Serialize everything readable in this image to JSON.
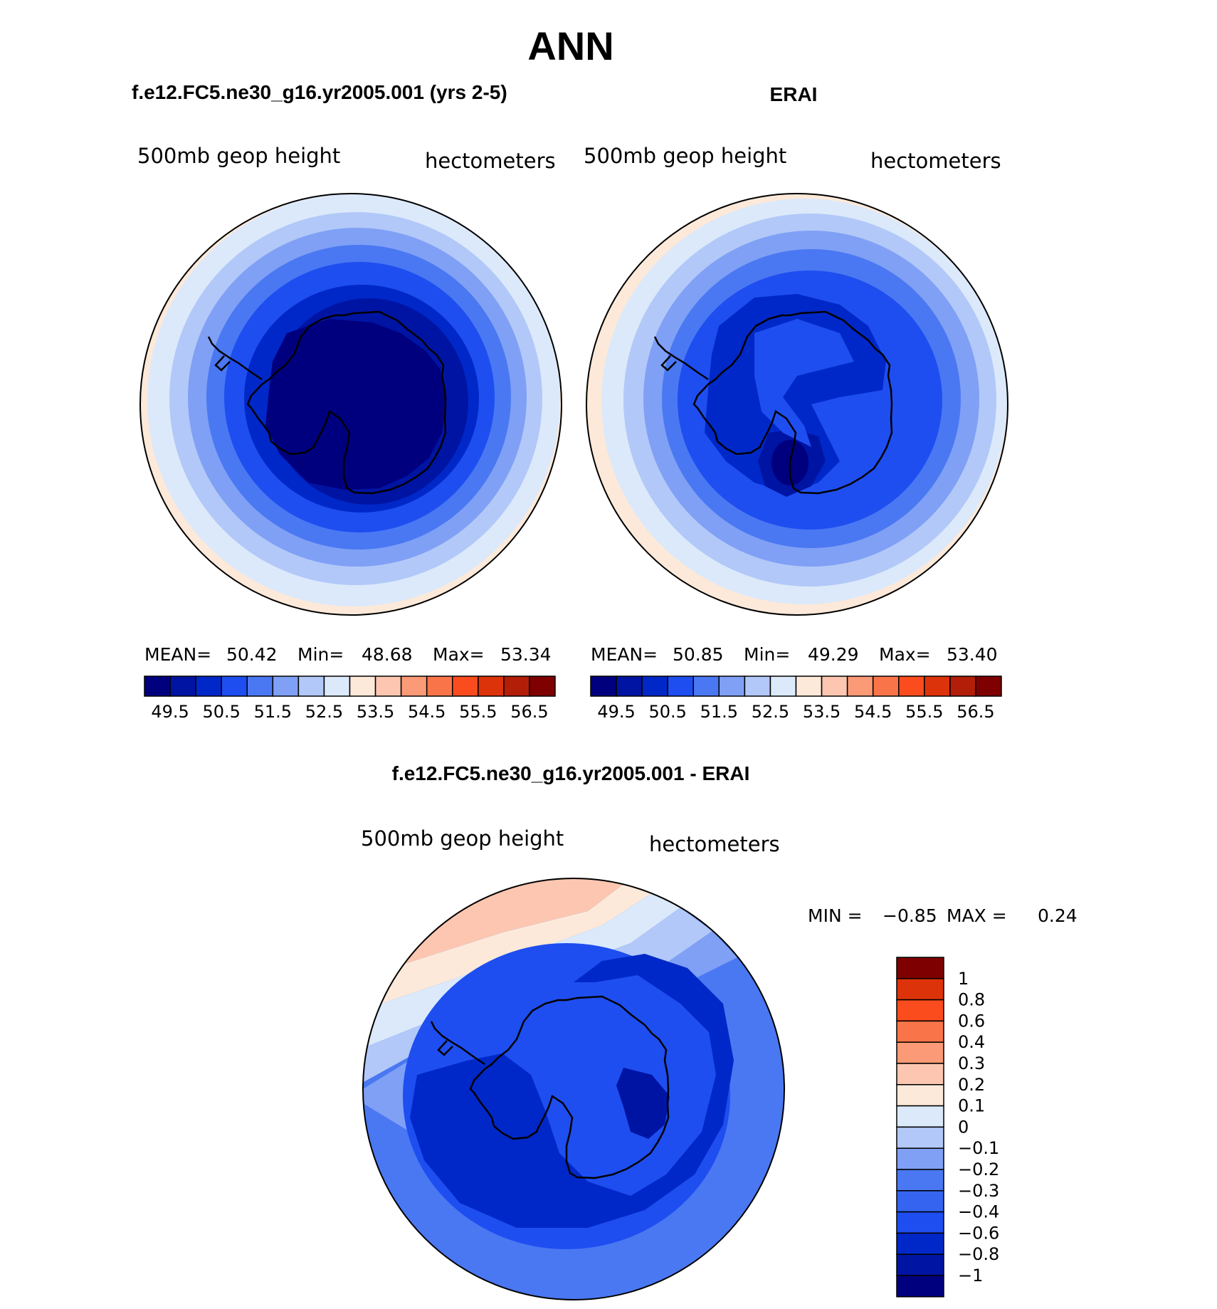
{
  "main_title": "ANN",
  "panels": [
    {
      "title": "f.e12.FC5.ne30_g16.yr2005.001 (yrs 2-5)",
      "left_label": "500mb  geop  height",
      "right_label": "hectometers",
      "stats": {
        "mean_label": "MEAN=",
        "mean": "50.42",
        "min_label": "Min=",
        "min": "48.68",
        "max_label": "Max=",
        "max": "53.34"
      }
    },
    {
      "title": "ERAI",
      "left_label": "500mb  geop  height",
      "right_label": "hectometers",
      "stats": {
        "mean_label": "MEAN=",
        "mean": "50.85",
        "min_label": "Min=",
        "min": "49.29",
        "max_label": "Max=",
        "max": "53.40"
      }
    }
  ],
  "colorbar_field": {
    "colors": [
      "#00007f",
      "#0014a3",
      "#0028c8",
      "#1e4ef0",
      "#4a78f2",
      "#7fa0f5",
      "#b2c8f8",
      "#dbe9fb",
      "#fde9d9",
      "#fcc6b0",
      "#fa9a76",
      "#f97549",
      "#fb4c1e",
      "#dd330a",
      "#b21e08",
      "#7f0000"
    ],
    "labels": [
      "49.5",
      "50.5",
      "51.5",
      "52.5",
      "53.5",
      "54.5",
      "55.5",
      "56.5"
    ]
  },
  "difference_panel": {
    "title": "f.e12.FC5.ne30_g16.yr2005.001 - ERAI",
    "left_label": "500mb  geop  height",
    "right_label": "hectometers",
    "min_label": "MIN =",
    "min": "−0.85",
    "max_label": "MAX =",
    "max": "0.24"
  },
  "colorbar_diff": {
    "colors": [
      "#00007f",
      "#0014a3",
      "#0028c8",
      "#1e4ef0",
      "#3464f0",
      "#4a78f2",
      "#7fa0f5",
      "#b2c8f8",
      "#dbe9fb",
      "#fde9d9",
      "#fcc6b0",
      "#fa9a76",
      "#f97549",
      "#fb4c1e",
      "#dd330a",
      "#7f0000"
    ],
    "labels": [
      "1",
      "0.8",
      "0.6",
      "0.4",
      "0.3",
      "0.2",
      "0.1",
      "0",
      "−0.1",
      "−0.2",
      "−0.3",
      "−0.4",
      "−0.6",
      "−0.8",
      "−1"
    ]
  },
  "map_colors": {
    "c_lvl0": "#00007f",
    "c_lvl1": "#0014a3",
    "c_lvl2": "#0028c8",
    "c_lvl3": "#1e4ef0",
    "c_lvl4": "#4a78f2",
    "c_lvl5": "#7fa0f5",
    "c_lvl6": "#b2c8f8",
    "c_lvl7": "#dbe9fb",
    "c_lvl8": "#fde9d9",
    "c_lvl9": "#fcc6b0",
    "c_lvl10": "#fa9a76",
    "coastline": "#000000"
  }
}
